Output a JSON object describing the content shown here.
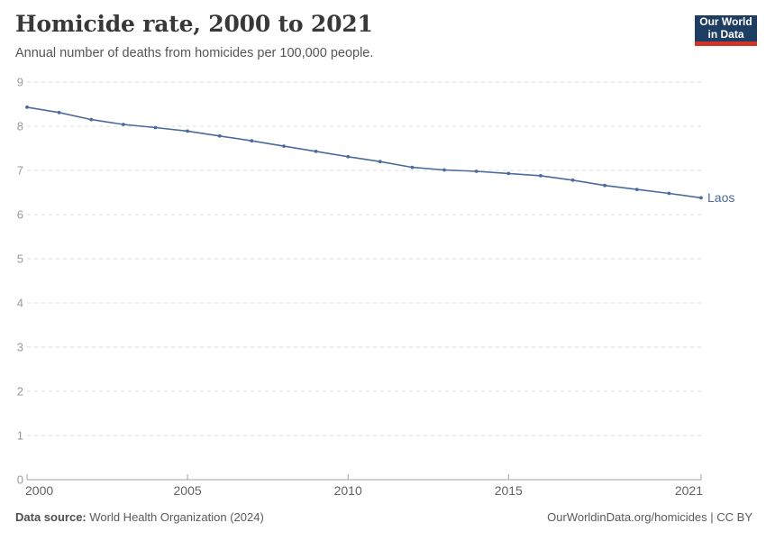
{
  "header": {
    "title": "Homicide rate, 2000 to 2021",
    "subtitle": "Annual number of deaths from homicides per 100,000 people.",
    "logo": {
      "line1": "Our World",
      "line2": "in Data"
    }
  },
  "footer": {
    "source_label": "Data source:",
    "source_text": " World Health Organization (2024)",
    "license_text": "OurWorldinData.org/homicides | CC BY"
  },
  "colors": {
    "line": "#4c6a9c",
    "entity_label": "#4c6a9c",
    "grid": "#dcdcdc",
    "axis": "#a1a1a1",
    "y_tick_label": "#999999",
    "x_tick_label": "#626262",
    "logo_bg": "#1d3d63",
    "logo_red": "#cf3429"
  },
  "chart_data": {
    "type": "line",
    "title": "Homicide rate, 2000 to 2021",
    "xlabel": "",
    "ylabel": "Annual number of deaths from homicides per 100,000 people",
    "x": [
      2000,
      2001,
      2002,
      2003,
      2004,
      2005,
      2006,
      2007,
      2008,
      2009,
      2010,
      2011,
      2012,
      2013,
      2014,
      2015,
      2016,
      2017,
      2018,
      2019,
      2020,
      2021
    ],
    "series": [
      {
        "name": "Laos",
        "values": [
          8.43,
          8.31,
          8.15,
          8.04,
          7.97,
          7.89,
          7.78,
          7.67,
          7.55,
          7.43,
          7.31,
          7.2,
          7.07,
          7.01,
          6.98,
          6.93,
          6.88,
          6.78,
          6.66,
          6.57,
          6.48,
          6.38
        ]
      }
    ],
    "xlim": [
      2000,
      2021
    ],
    "ylim": [
      0,
      9
    ],
    "y_ticks": [
      0,
      1,
      2,
      3,
      4,
      5,
      6,
      7,
      8,
      9
    ],
    "x_ticks": [
      2000,
      2005,
      2010,
      2015,
      2021
    ],
    "grid": "dashed-horizontal",
    "legend_position": "end-of-line"
  }
}
